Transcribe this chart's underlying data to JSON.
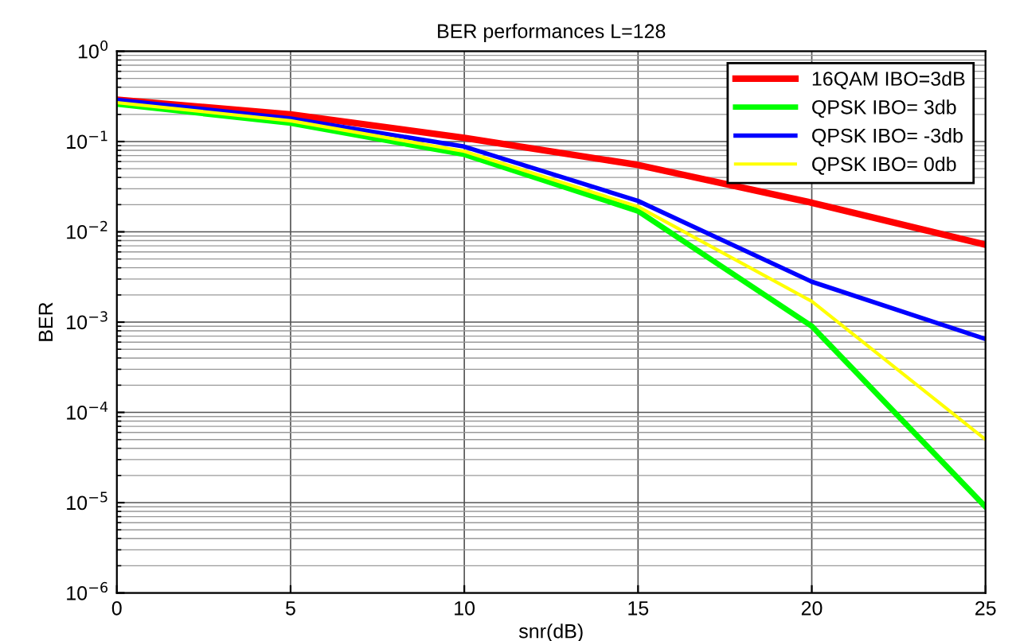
{
  "chart_data": {
    "type": "line",
    "title": "BER performances L=128",
    "xlabel": "snr(dB)",
    "ylabel": "BER",
    "x": [
      0,
      5,
      10,
      15,
      20,
      25
    ],
    "log": "y",
    "grid": true,
    "legend": "top right",
    "marker": "none",
    "line_style": "solid",
    "xlim": [
      0,
      25
    ],
    "xticks": [
      0,
      5,
      10,
      15,
      20,
      25
    ],
    "ylim": [
      1e-06,
      1
    ],
    "yticks": [
      {
        "value": 1e-06,
        "label": "10$^{−6}$"
      },
      {
        "value": 1e-05,
        "label": "10$^{−5}$"
      },
      {
        "value": 0.0001,
        "label": "10$^{−4}$"
      },
      {
        "value": 0.001,
        "label": "10$^{−3}$"
      },
      {
        "value": 0.01,
        "label": "10$^{−2}$"
      },
      {
        "value": 0.1,
        "label": "10$^{−1}$"
      },
      {
        "value": 1,
        "label": "10$^{0}$"
      }
    ],
    "series": [
      {
        "name": "16QAM IBO=3dB",
        "color": "#ff0000",
        "values": [
          0.29,
          0.2,
          0.11,
          0.055,
          0.021,
          0.0072
        ]
      },
      {
        "name": "QPSK IBO= 3db",
        "color": "#00ff00",
        "values": [
          0.26,
          0.16,
          0.072,
          0.017,
          0.0009,
          9e-06
        ]
      },
      {
        "name": "QPSK IBO= -3db",
        "color": "#0000ff",
        "values": [
          0.29,
          0.18,
          0.088,
          0.022,
          0.0028,
          0.00065
        ]
      },
      {
        "name": "QPSK IBO= 0db",
        "color": "#ffff00",
        "values": [
          0.27,
          0.17,
          0.078,
          0.019,
          0.0017,
          5e-05
        ]
      }
    ]
  }
}
